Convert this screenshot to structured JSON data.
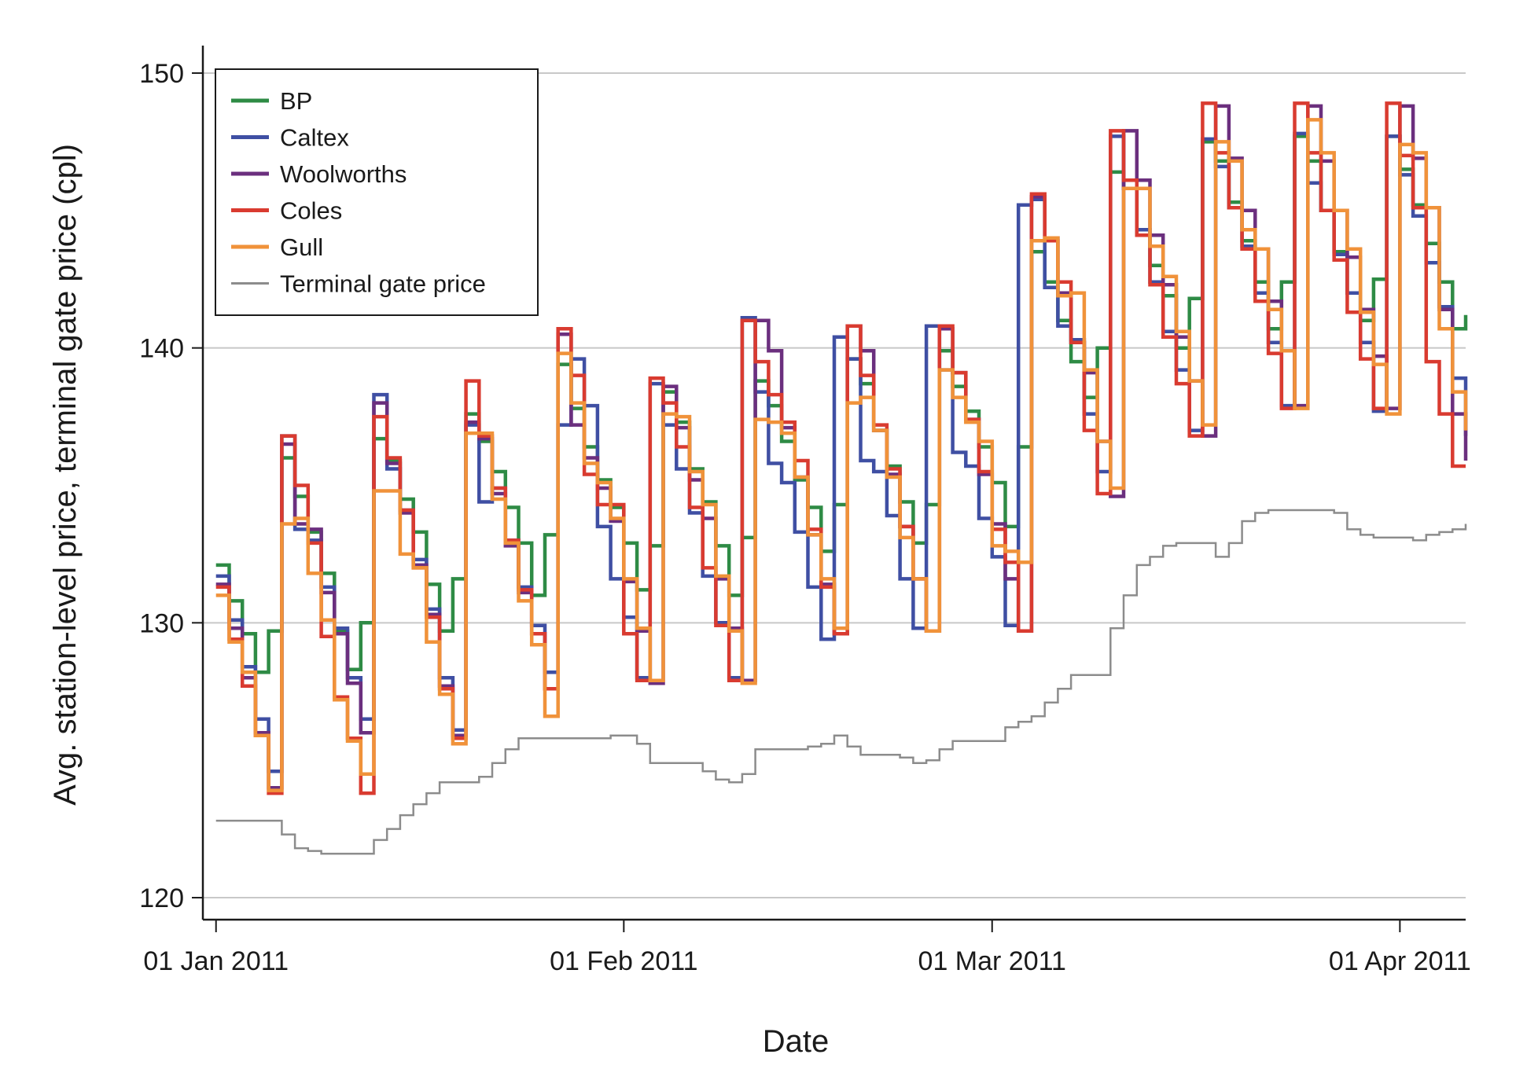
{
  "chart_data": {
    "type": "line",
    "step": true,
    "xlabel": "Date",
    "ylabel": "Avg. station-level price, terminal gate price (cpl)",
    "ylim": [
      119.2,
      151
    ],
    "xlim": [
      "2010-12-31",
      "2011-04-06"
    ],
    "grid": "horizontal",
    "legend_position": "top-left",
    "x_ticks": [
      {
        "date": "2011-01-01",
        "label": "01 Jan 2011"
      },
      {
        "date": "2011-02-01",
        "label": "01 Feb 2011"
      },
      {
        "date": "2011-03-01",
        "label": "01 Mar 2011"
      },
      {
        "date": "2011-04-01",
        "label": "01 Apr 2011"
      }
    ],
    "y_ticks": [
      120,
      130,
      140,
      150
    ],
    "dates": [
      "2011-01-01",
      "2011-01-02",
      "2011-01-03",
      "2011-01-04",
      "2011-01-05",
      "2011-01-06",
      "2011-01-07",
      "2011-01-08",
      "2011-01-09",
      "2011-01-10",
      "2011-01-11",
      "2011-01-12",
      "2011-01-13",
      "2011-01-14",
      "2011-01-15",
      "2011-01-16",
      "2011-01-17",
      "2011-01-18",
      "2011-01-19",
      "2011-01-20",
      "2011-01-21",
      "2011-01-22",
      "2011-01-23",
      "2011-01-24",
      "2011-01-25",
      "2011-01-26",
      "2011-01-27",
      "2011-01-28",
      "2011-01-29",
      "2011-01-30",
      "2011-01-31",
      "2011-02-01",
      "2011-02-02",
      "2011-02-03",
      "2011-02-04",
      "2011-02-05",
      "2011-02-06",
      "2011-02-07",
      "2011-02-08",
      "2011-02-09",
      "2011-02-10",
      "2011-02-11",
      "2011-02-12",
      "2011-02-13",
      "2011-02-14",
      "2011-02-15",
      "2011-02-16",
      "2011-02-17",
      "2011-02-18",
      "2011-02-19",
      "2011-02-20",
      "2011-02-21",
      "2011-02-22",
      "2011-02-23",
      "2011-02-24",
      "2011-02-25",
      "2011-02-26",
      "2011-02-27",
      "2011-02-28",
      "2011-03-01",
      "2011-03-02",
      "2011-03-03",
      "2011-03-04",
      "2011-03-05",
      "2011-03-06",
      "2011-03-07",
      "2011-03-08",
      "2011-03-09",
      "2011-03-10",
      "2011-03-11",
      "2011-03-12",
      "2011-03-13",
      "2011-03-14",
      "2011-03-15",
      "2011-03-16",
      "2011-03-17",
      "2011-03-18",
      "2011-03-19",
      "2011-03-20",
      "2011-03-21",
      "2011-03-22",
      "2011-03-23",
      "2011-03-24",
      "2011-03-25",
      "2011-03-26",
      "2011-03-27",
      "2011-03-28",
      "2011-03-29",
      "2011-03-30",
      "2011-03-31",
      "2011-04-01",
      "2011-04-02",
      "2011-04-03",
      "2011-04-04",
      "2011-04-05",
      "2011-04-06"
    ],
    "series": [
      {
        "name": "BP",
        "color": "#2e8b45",
        "width": 4.5,
        "values": [
          132.1,
          130.8,
          129.6,
          128.2,
          129.7,
          136.0,
          134.6,
          133.3,
          131.8,
          129.7,
          128.3,
          130.0,
          136.7,
          135.9,
          134.5,
          133.3,
          131.4,
          129.7,
          131.6,
          137.6,
          136.6,
          135.5,
          134.2,
          132.9,
          131.0,
          133.2,
          139.4,
          137.8,
          136.4,
          135.2,
          134.2,
          132.9,
          131.2,
          132.8,
          138.4,
          137.3,
          135.6,
          134.4,
          132.8,
          131.0,
          133.1,
          138.8,
          137.9,
          136.6,
          135.2,
          134.2,
          132.6,
          134.3,
          139.6,
          138.7,
          137.0,
          135.7,
          134.4,
          132.9,
          134.3,
          139.9,
          138.6,
          137.7,
          136.4,
          135.1,
          133.5,
          136.4,
          143.5,
          142.4,
          141.0,
          139.5,
          138.2,
          140.0,
          146.4,
          145.8,
          144.1,
          143.0,
          141.9,
          140.0,
          141.8,
          147.5,
          146.8,
          145.3,
          143.9,
          142.4,
          140.7,
          142.4,
          147.7,
          146.8,
          145.0,
          143.5,
          142.0,
          141.0,
          142.5,
          147.7,
          146.5,
          145.2,
          143.8,
          142.4,
          140.7,
          141.2
        ]
      },
      {
        "name": "Caltex",
        "color": "#3f4fa3",
        "width": 4.5,
        "values": [
          131.7,
          130.1,
          128.4,
          126.5,
          124.6,
          136.8,
          133.4,
          133.0,
          131.3,
          129.8,
          128.0,
          126.5,
          138.3,
          135.6,
          134.1,
          132.3,
          130.5,
          128.0,
          126.1,
          137.2,
          134.4,
          134.9,
          133.0,
          131.3,
          129.9,
          128.2,
          137.2,
          139.6,
          137.9,
          133.5,
          131.6,
          130.2,
          128.0,
          138.7,
          137.2,
          135.6,
          134.0,
          131.7,
          130.0,
          128.0,
          141.1,
          138.4,
          135.8,
          135.1,
          133.3,
          131.3,
          129.4,
          140.4,
          139.6,
          135.9,
          135.5,
          133.9,
          131.6,
          129.8,
          140.8,
          139.2,
          136.2,
          135.7,
          133.8,
          132.4,
          129.9,
          145.2,
          145.4,
          142.2,
          140.8,
          140.3,
          137.6,
          135.5,
          147.7,
          145.8,
          144.3,
          142.4,
          140.6,
          139.2,
          137.0,
          147.6,
          146.6,
          145.1,
          143.7,
          142.0,
          140.2,
          137.9,
          147.8,
          146.0,
          145.0,
          143.4,
          142.0,
          140.2,
          137.7,
          147.7,
          146.3,
          144.8,
          143.1,
          141.5,
          138.9,
          136.8
        ]
      },
      {
        "name": "Woolworths",
        "color": "#6b2f7e",
        "width": 4.5,
        "values": [
          131.4,
          129.8,
          128.0,
          126.0,
          124.0,
          136.5,
          133.6,
          133.4,
          131.1,
          129.6,
          127.8,
          126.0,
          138.0,
          135.8,
          134.0,
          132.1,
          130.3,
          127.7,
          125.9,
          137.3,
          136.7,
          134.7,
          132.8,
          131.1,
          129.6,
          127.6,
          140.5,
          137.2,
          136.0,
          134.9,
          133.7,
          131.5,
          129.7,
          127.8,
          138.6,
          137.1,
          135.2,
          133.8,
          131.6,
          129.8,
          127.9,
          141.0,
          139.9,
          137.1,
          135.3,
          133.2,
          131.4,
          129.6,
          140.8,
          139.9,
          137.0,
          135.4,
          133.5,
          131.6,
          129.7,
          140.7,
          139.1,
          137.4,
          135.4,
          133.6,
          131.6,
          129.7,
          145.5,
          144.0,
          142.0,
          140.2,
          139.1,
          136.6,
          134.6,
          147.9,
          146.1,
          144.1,
          142.3,
          140.4,
          138.8,
          136.8,
          148.8,
          146.9,
          145.0,
          143.6,
          141.7,
          139.9,
          137.9,
          148.8,
          146.8,
          145.0,
          143.3,
          141.4,
          139.7,
          137.8,
          148.8,
          146.9,
          145.1,
          141.4,
          137.6,
          135.9
        ]
      },
      {
        "name": "Coles",
        "color": "#d93b30",
        "width": 4.5,
        "values": [
          131.3,
          129.4,
          127.7,
          125.9,
          123.8,
          136.8,
          135.0,
          132.9,
          129.5,
          127.3,
          125.8,
          123.8,
          137.5,
          136.0,
          134.1,
          132.0,
          130.2,
          127.6,
          125.8,
          138.8,
          136.8,
          134.9,
          133.0,
          131.2,
          129.6,
          127.6,
          140.7,
          139.0,
          135.4,
          134.3,
          134.3,
          129.6,
          127.9,
          138.9,
          138.0,
          136.4,
          134.2,
          132.0,
          129.9,
          127.9,
          141.0,
          139.5,
          138.3,
          137.3,
          135.9,
          133.4,
          131.3,
          129.6,
          140.8,
          139.0,
          137.2,
          135.6,
          133.5,
          131.6,
          129.7,
          140.8,
          139.1,
          137.4,
          135.5,
          133.4,
          132.2,
          129.7,
          145.6,
          143.9,
          142.4,
          140.2,
          137.0,
          134.7,
          147.9,
          146.1,
          144.1,
          142.3,
          140.4,
          138.7,
          136.8,
          148.9,
          147.1,
          145.1,
          143.6,
          141.7,
          139.8,
          137.8,
          148.9,
          147.1,
          145.0,
          143.2,
          141.3,
          139.6,
          137.8,
          148.9,
          147.0,
          145.1,
          139.5,
          137.6,
          135.7,
          135.7
        ]
      },
      {
        "name": "Gull",
        "color": "#f0923a",
        "width": 4.5,
        "values": [
          131.0,
          129.3,
          128.2,
          125.9,
          123.9,
          133.6,
          133.8,
          131.8,
          130.1,
          127.2,
          125.7,
          124.5,
          134.8,
          134.8,
          132.5,
          132.0,
          129.3,
          127.4,
          125.6,
          136.9,
          136.9,
          134.5,
          132.9,
          130.8,
          129.2,
          126.6,
          139.8,
          138.0,
          135.8,
          135.1,
          133.8,
          131.6,
          129.8,
          127.9,
          137.6,
          137.5,
          135.5,
          134.3,
          131.7,
          129.7,
          127.8,
          137.4,
          137.3,
          136.9,
          135.3,
          133.2,
          131.6,
          129.8,
          138.0,
          138.2,
          137.0,
          135.3,
          133.1,
          131.6,
          129.7,
          139.2,
          138.2,
          137.3,
          136.6,
          132.8,
          132.6,
          132.2,
          143.9,
          144.0,
          141.9,
          142.0,
          139.2,
          136.6,
          134.9,
          145.8,
          145.8,
          143.7,
          142.6,
          140.6,
          138.8,
          137.2,
          147.5,
          146.8,
          144.3,
          143.6,
          141.4,
          139.9,
          137.8,
          148.3,
          147.1,
          145.0,
          143.6,
          141.3,
          139.4,
          137.6,
          147.4,
          147.1,
          145.1,
          140.7,
          138.4,
          137.0
        ]
      },
      {
        "name": "Terminal gate price",
        "color": "#8c8c8c",
        "width": 2.5,
        "values": [
          122.8,
          122.8,
          122.8,
          122.8,
          122.8,
          122.3,
          121.8,
          121.7,
          121.6,
          121.6,
          121.6,
          121.6,
          122.1,
          122.5,
          123.0,
          123.4,
          123.8,
          124.2,
          124.2,
          124.2,
          124.4,
          124.9,
          125.4,
          125.8,
          125.8,
          125.8,
          125.8,
          125.8,
          125.8,
          125.8,
          125.9,
          125.9,
          125.6,
          124.9,
          124.9,
          124.9,
          124.9,
          124.6,
          124.3,
          124.2,
          124.5,
          125.4,
          125.4,
          125.4,
          125.4,
          125.5,
          125.6,
          125.9,
          125.5,
          125.2,
          125.2,
          125.2,
          125.1,
          124.9,
          125.0,
          125.4,
          125.7,
          125.7,
          125.7,
          125.7,
          126.2,
          126.4,
          126.6,
          127.1,
          127.6,
          128.1,
          128.1,
          128.1,
          129.8,
          131.0,
          132.1,
          132.4,
          132.8,
          132.9,
          132.9,
          132.9,
          132.4,
          132.9,
          133.7,
          134.0,
          134.1,
          134.1,
          134.1,
          134.1,
          134.1,
          134.0,
          133.4,
          133.2,
          133.1,
          133.1,
          133.1,
          133.0,
          133.2,
          133.3,
          133.4,
          133.6
        ]
      }
    ]
  }
}
